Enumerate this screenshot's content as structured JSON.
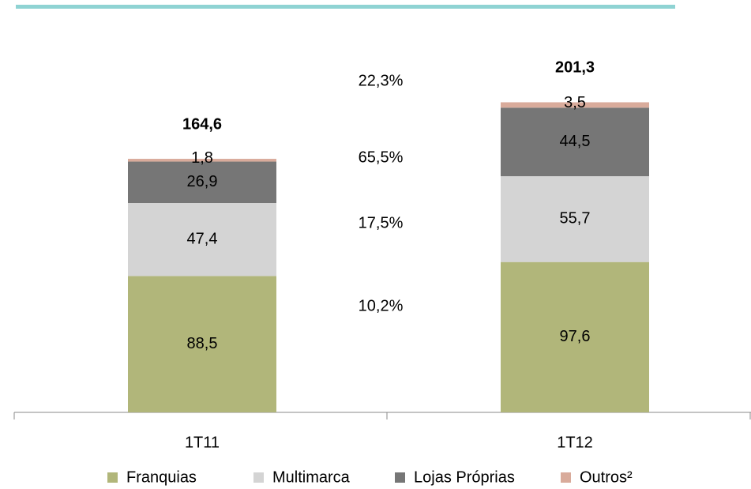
{
  "chart_data": {
    "type": "stacked_bar",
    "categories": [
      "1T11",
      "1T12"
    ],
    "series": [
      {
        "name": "Franquias",
        "color": "#b1b67a",
        "values": [
          88.5,
          97.6
        ],
        "value_labels": [
          "88,5",
          "97,6"
        ],
        "growth": 10.2,
        "growth_label": "10,2%"
      },
      {
        "name": "Multimarca",
        "color": "#d4d4d4",
        "values": [
          47.4,
          55.7
        ],
        "value_labels": [
          "47,4",
          "55,7"
        ],
        "growth": 17.5,
        "growth_label": "17,5%"
      },
      {
        "name": "Lojas Próprias",
        "color": "#767676",
        "values": [
          26.9,
          44.5
        ],
        "value_labels": [
          "26,9",
          "44,5"
        ],
        "growth": 65.5,
        "growth_label": "65,5%"
      },
      {
        "name": "Outros²",
        "color": "#d9ab9b",
        "values": [
          1.8,
          3.5
        ],
        "value_labels": [
          "1,8",
          "3,5"
        ]
      }
    ],
    "totals": [
      164.6,
      201.3
    ],
    "total_labels": [
      "164,6",
      "201,3"
    ],
    "total_growth": 22.3,
    "total_growth_label": "22,3%",
    "total_growth_color": "#8fd3d3"
  }
}
